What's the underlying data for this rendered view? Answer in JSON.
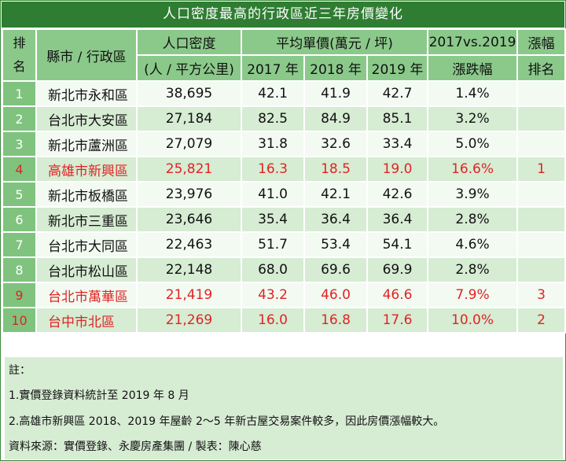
{
  "title": "人口密度最高的行政區近三年房價變化",
  "header": {
    "rank": "排名",
    "district": "縣市 / 行政區",
    "density": "人口密度",
    "density_unit": "(人 / 平方公里)",
    "avg_price": "平均單價(萬元 / 坪)",
    "y2017": "2017 年",
    "y2018": "2018 年",
    "y2019": "2019 年",
    "change": "2017vs.2019",
    "change_sub": "漲跌幅",
    "growth_rank": "漲幅",
    "growth_rank_sub": "排名"
  },
  "rows": [
    {
      "num": "1",
      "district": "新北市永和區",
      "density": "38,695",
      "p2017": "42.1",
      "p2018": "41.9",
      "p2019": "42.7",
      "change": "1.4%",
      "rank": ""
    },
    {
      "num": "2",
      "district": "台北市大安區",
      "density": "27,184",
      "p2017": "82.5",
      "p2018": "84.9",
      "p2019": "85.1",
      "change": "3.2%",
      "rank": ""
    },
    {
      "num": "3",
      "district": "新北市蘆洲區",
      "density": "27,079",
      "p2017": "31.8",
      "p2018": "32.6",
      "p2019": "33.4",
      "change": "5.0%",
      "rank": ""
    },
    {
      "num": "4",
      "district": "高雄市新興區",
      "density": "25,821",
      "p2017": "16.3",
      "p2018": "18.5",
      "p2019": "19.0",
      "change": "16.6%",
      "rank": "1"
    },
    {
      "num": "5",
      "district": "新北市板橋區",
      "density": "23,976",
      "p2017": "41.0",
      "p2018": "42.1",
      "p2019": "42.6",
      "change": "3.9%",
      "rank": ""
    },
    {
      "num": "6",
      "district": "新北市三重區",
      "density": "23,646",
      "p2017": "35.4",
      "p2018": "36.4",
      "p2019": "36.4",
      "change": "2.8%",
      "rank": ""
    },
    {
      "num": "7",
      "district": "台北市大同區",
      "density": "22,463",
      "p2017": "51.7",
      "p2018": "53.4",
      "p2019": "54.1",
      "change": "4.6%",
      "rank": ""
    },
    {
      "num": "8",
      "district": "台北市松山區",
      "density": "22,148",
      "p2017": "68.0",
      "p2018": "69.6",
      "p2019": "69.9",
      "change": "2.8%",
      "rank": ""
    },
    {
      "num": "9",
      "district": "台北市萬華區",
      "density": "21,419",
      "p2017": "43.2",
      "p2018": "46.0",
      "p2019": "46.6",
      "change": "7.9%",
      "rank": "3"
    },
    {
      "num": "10",
      "district": "台中市北區",
      "density": "21,269",
      "p2017": "16.0",
      "p2018": "16.8",
      "p2019": "17.6",
      "change": "10.0%",
      "rank": "2"
    }
  ],
  "highlight_color": "#e02424",
  "notes": {
    "label": "註：",
    "note1": "1.實價登錄資料統計至 2019 年 8 月",
    "note2": "2.高雄市新興區 2018、2019 年屋齡 2～5 年新古屋交易案件較多，因此房價漲幅較大。",
    "source": "資料來源：實價登錄、永慶房產集團 / 製表：陳心慈"
  }
}
